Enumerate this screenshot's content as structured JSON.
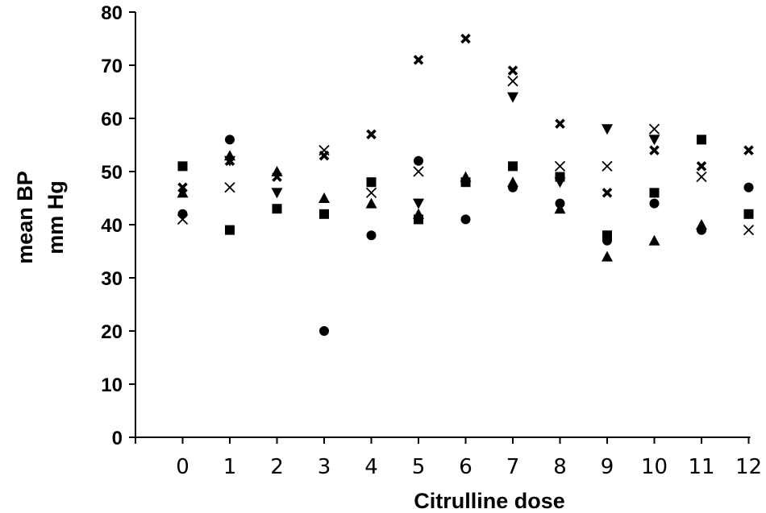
{
  "chart_data": {
    "type": "scatter",
    "title": "",
    "xlabel": "Citrulline dose",
    "ylabel_lines": [
      "mean BP",
      "mm Hg"
    ],
    "x_ticks": [
      "0",
      "1",
      "2",
      "3",
      "4",
      "5",
      "6",
      "7",
      "8",
      "9",
      "10",
      "11",
      "12"
    ],
    "y_ticks": [
      "0",
      "10",
      "20",
      "30",
      "40",
      "50",
      "60",
      "70",
      "80"
    ],
    "xlim": [
      -1,
      12
    ],
    "ylim": [
      0,
      80
    ],
    "grid": false,
    "legend": "none",
    "series": [
      {
        "marker": "circle",
        "x": [
          0,
          1,
          3,
          4,
          5,
          6,
          7,
          8,
          9,
          10,
          11,
          12
        ],
        "y": [
          42,
          56,
          20,
          38,
          52,
          41,
          47,
          44,
          37,
          44,
          39,
          47
        ]
      },
      {
        "marker": "square",
        "x": [
          0,
          1,
          2,
          3,
          4,
          5,
          6,
          7,
          8,
          9,
          10,
          11,
          12
        ],
        "y": [
          51,
          39,
          43,
          42,
          48,
          41,
          48,
          51,
          49,
          38,
          46,
          56,
          42
        ]
      },
      {
        "marker": "triangle",
        "x": [
          0,
          1,
          2,
          3,
          4,
          5,
          6,
          7,
          8,
          9,
          10,
          11
        ],
        "y": [
          46,
          53,
          50,
          45,
          44,
          42,
          49,
          48,
          43,
          34,
          37,
          40
        ]
      },
      {
        "marker": "triangle-down",
        "x": [
          1,
          2,
          5,
          7,
          8,
          9,
          10
        ],
        "y": [
          52,
          46,
          44,
          64,
          48,
          58,
          56
        ]
      },
      {
        "marker": "thin-x",
        "x": [
          0,
          1,
          3,
          4,
          5,
          7,
          8,
          9,
          10,
          11,
          12
        ],
        "y": [
          41,
          47,
          54,
          46,
          50,
          67,
          51,
          51,
          58,
          49,
          39
        ]
      },
      {
        "marker": "bold-x",
        "x": [
          0,
          1,
          2,
          3,
          4,
          5,
          6,
          7,
          8,
          9,
          10,
          11,
          12
        ],
        "y": [
          47,
          52,
          49,
          53,
          57,
          71,
          75,
          69,
          59,
          46,
          54,
          51,
          54
        ]
      }
    ],
    "color": "#000000"
  }
}
